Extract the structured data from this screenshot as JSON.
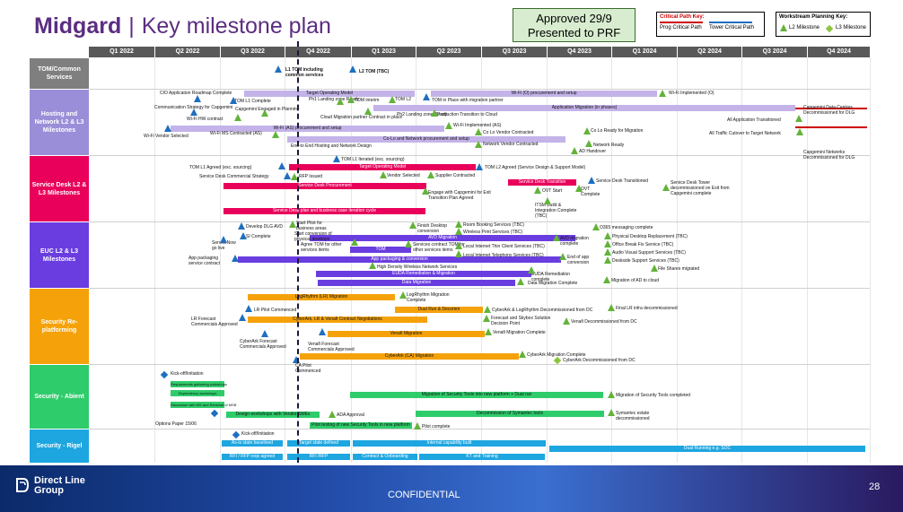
{
  "header": {
    "brand": "Midgard",
    "divider": "|",
    "title": "Key milestone plan",
    "approved_line1": "Approved 29/9",
    "approved_line2": "Presented to PRF"
  },
  "keys": {
    "critical_title": "Critical Path Key:",
    "critical_prog": "Prog Critical Path",
    "critical_tower": "Tower Critical Path",
    "workstream_title": "Workstream Planning Key:",
    "l2": "L2 Milestone",
    "l3": "L3 Milestone"
  },
  "quarters": [
    "Q1 2022",
    "Q2 2022",
    "Q3 2022",
    "Q4 2022",
    "Q1 2023",
    "Q2 2023",
    "Q3 2023",
    "Q4 2023",
    "Q1 2024",
    "Q2 2024",
    "Q3 2024",
    "Q4 2024"
  ],
  "rows": [
    {
      "label": "TOM/Common Services",
      "color": "#7f7f7f"
    },
    {
      "label": "Hosting and Network L2 & L3 Milestones",
      "color": "#9b8ed8"
    },
    {
      "label": "Service Desk L2 & L3 Milestones",
      "color": "#e8005a"
    },
    {
      "label": "EUC L2 & L3 Milestones",
      "color": "#6a3de0"
    },
    {
      "label": "Security Re-platforming",
      "color": "#f5a20a"
    },
    {
      "label": "Security - Abient",
      "color": "#2fcc6b"
    },
    {
      "label": "Security - Rigel",
      "color": "#1da6e0"
    }
  ],
  "tom": {
    "l1": "L1 TOM including common services",
    "l2": "L2 TOM (TBC)"
  },
  "hosting": {
    "b1": "Target Operating Model",
    "b2": "Wi-Fi (O) procurement and setup",
    "b3": "Application Migration (in phases)",
    "b4": "Wi-Fi (AS) procurement and setup",
    "b5": "Co-Lo and Network procurement and setup",
    "l1": "CIO Application Roadmap Complete",
    "l2": "Communication Strategy for Capgemini",
    "l3": "TOM L1 Complete",
    "l4": "Capgemini Engaged in Planning",
    "l5": "Wi-Fi HW contract",
    "l6": "Wi-Fi MS Contracted (AS)",
    "l7": "Wi-Fi Vendor Selected",
    "l8": "Ph1 Landing zone Ready",
    "l9": "TOM interim",
    "l10": "TOM L2",
    "l11": "TOM in Place with migration partner",
    "l12": "Cloud Migration partner Contract in place",
    "l13": "Ph2 Landing zone Ready",
    "l14": "Production Transition to Cloud",
    "l15": "Wi-Fi Implemented (AS)",
    "l16": "Co Lo Vendor Contracted",
    "l17": "End-to End Hosting and Network Design",
    "l18": "Network Vendor Contracted",
    "l19": "Co Lo Ready for Migration",
    "l20": "Network Ready",
    "l21": "AD Handover",
    "l22": "Wi-Fi Implemented (O)",
    "l23": "All Application Transitioned",
    "l24": "Capgemini Data Centres Decommissioned for DLG",
    "l25": "All Traffic Cutover to Target Network",
    "l26": "Capgemini Networks Decommissioned for DLG"
  },
  "sd": {
    "b1": "Target Operating Model",
    "b2": "Service Desk Procurement",
    "b3": "Service Desk Transition",
    "b4": "Service Desk plan and business case iteration cycle",
    "l1": "TOM L1 Iterated (exc. sourcing)",
    "l2": "TOM L1 Agreed (exc. sourcing)",
    "l3": "Service Desk Commercial Strategy",
    "l4": "RFP Issued",
    "l5": "Vendor Selected",
    "l6": "Supplier Contracted",
    "l7": "TOM L2 Agreed (Service Design & Support Model)",
    "l8": "Engage with Capgemini for Exit Transition Plan Agreed",
    "l9": "OVT Start",
    "l10": "OVT Complete",
    "l11": "Service Desk Transitioned",
    "l12": "Service Desk Tower decommissioned on Exit from Capgemini complete",
    "l13": "ITSM Build & Integration Complete (TBC)"
  },
  "euc": {
    "b1": "AVD Migration",
    "b2": "TOM",
    "b3": "App packaging & conversion",
    "b4": "EUDA Remediation & Migration",
    "b5": "Data Migration",
    "l1": "Develop DLG AVD",
    "l2": "SI Complete",
    "l3": "ServiceNow go live",
    "l4": "App packaging service contract",
    "l5": "Start Pilot for business areas",
    "l6": "Start conversion of physical desktops",
    "l7": "Agree TOM for other services items",
    "l8": "Finish Desktop conversion",
    "l9": "Services contract TOM for other services items",
    "l10": "High Density Wireless Network Services",
    "l11": "Room Booking Services (TBC)",
    "l12": "Wireless Print Services (TBC)",
    "l13": "Local Internet Thin Client Services (TBC)",
    "l14": "Local Internet Telephony Services (TBC)",
    "l15": "AVD migration complete",
    "l16": "End of app conversion",
    "l17": "EUDA Remediation complete",
    "l18": "Data Migration Complete",
    "l19": "O365 messaging complete",
    "l20": "Physical Desktop Replacement (TBC)",
    "l21": "Office Break Fix Service (TBC)",
    "l22": "Audio Visual Support Services (TBC)",
    "l23": "Deskside Support Services (TBC)",
    "l24": "File Shares migrated",
    "l25": "Migration of AD to cloud"
  },
  "sec": {
    "b1": "LogRhythm (LR) Migration",
    "b2": "Dual Run & Decomm",
    "b3": "CyberArk, LR & Venafi Contract Negotiations",
    "b4": "Venafi Migration",
    "b5": "CyberArk (CA) Migration",
    "l1": "LogRhythm Migration Complete",
    "l2": "LR Pilot Commenced",
    "l3": "LR Forecast Commercials Approved",
    "l4": "CyberArk & LogRhythm Decommissioned from DC",
    "l5": "Final LR infra decommissioned",
    "l6": "Forecast and Skybox Solution Decision Point",
    "l7": "Venafi Decommissioned from DC",
    "l8": "CyberArk Forecast Commercials Approved",
    "l9": "Venafi Forecast Commercials Approved",
    "l10": "Venafi Migration Complete",
    "l11": "CyberArk Migration Complete",
    "l12": "CyberArk Decommissioned from DC",
    "l13": "CA Pilot Commenced"
  },
  "abient": {
    "b1": "Requirements gathering workshops",
    "b2": "Dependency workshops",
    "b3": "Discussion with MS and Renewal of MSB",
    "b4": "Design workshops with Vendor SMEs",
    "b5": "Migration of Security Tools into new platform + Dual run",
    "b6": "Decommission of Symantec tools",
    "b7": "Pilot testing of new Security Tools in new platform",
    "l1": "Kick-off/Initiation",
    "l2": "Options Paper 15/06",
    "l3": "ADA Approval",
    "l4": "Migration of Security Tools completed",
    "l5": "Symantec estate decommissioned",
    "l6": "Pilot complete"
  },
  "rigel": {
    "b1": "As-is state baselined",
    "b2": "Target state defined",
    "b3": "Internal capability built",
    "b4": "RFI / RFP reqs agreed",
    "b5": "RFI /RFP",
    "b6": "Contract & Onboarding",
    "b7": "KT and Training",
    "b8": "Dual Running e.g. SOC",
    "l1": "Kick-off/Initiation"
  },
  "footer": {
    "logo_line1": "Direct Line",
    "logo_line2": "Group",
    "confidential": "CONFIDENTIAL",
    "page": "28"
  },
  "colors": {
    "purple_title": "#5b2d82",
    "l2_triangle": "#1f6fbf",
    "l3_triangle": "#63b33a",
    "critical_path": "#c00000"
  }
}
